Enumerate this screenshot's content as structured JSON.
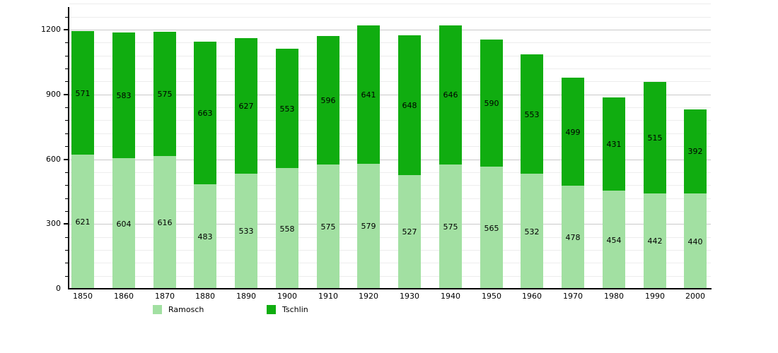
{
  "chart_data": {
    "type": "bar",
    "stacked": true,
    "categories": [
      "1850",
      "1860",
      "1870",
      "1880",
      "1890",
      "1900",
      "1910",
      "1920",
      "1930",
      "1940",
      "1950",
      "1960",
      "1970",
      "1980",
      "1990",
      "2000"
    ],
    "series": [
      {
        "name": "Ramosch",
        "color": "#a2e0a2",
        "values": [
          621,
          604,
          616,
          483,
          533,
          558,
          575,
          579,
          527,
          575,
          565,
          532,
          478,
          454,
          442,
          440
        ]
      },
      {
        "name": "Tschlin",
        "color": "#10ad10",
        "values": [
          571,
          583,
          575,
          663,
          627,
          553,
          596,
          641,
          648,
          646,
          590,
          553,
          499,
          431,
          515,
          392
        ]
      }
    ],
    "title": "",
    "xlabel": "",
    "ylabel": "",
    "ylim": [
      0,
      1320
    ],
    "yticks": [
      0,
      300,
      600,
      900,
      1200
    ],
    "minor_grid_step": 60,
    "grid": true,
    "legend_position": "bottom",
    "value_labels": true,
    "colors": {
      "grid_major": "#c9c9c9",
      "grid_minor": "#ededed",
      "axis": "#000000",
      "label_text": "#000000",
      "background": "#ffffff"
    }
  },
  "legend": {
    "items": [
      {
        "label": "Ramosch",
        "color": "#a2e0a2"
      },
      {
        "label": "Tschlin",
        "color": "#10ad10"
      }
    ]
  }
}
